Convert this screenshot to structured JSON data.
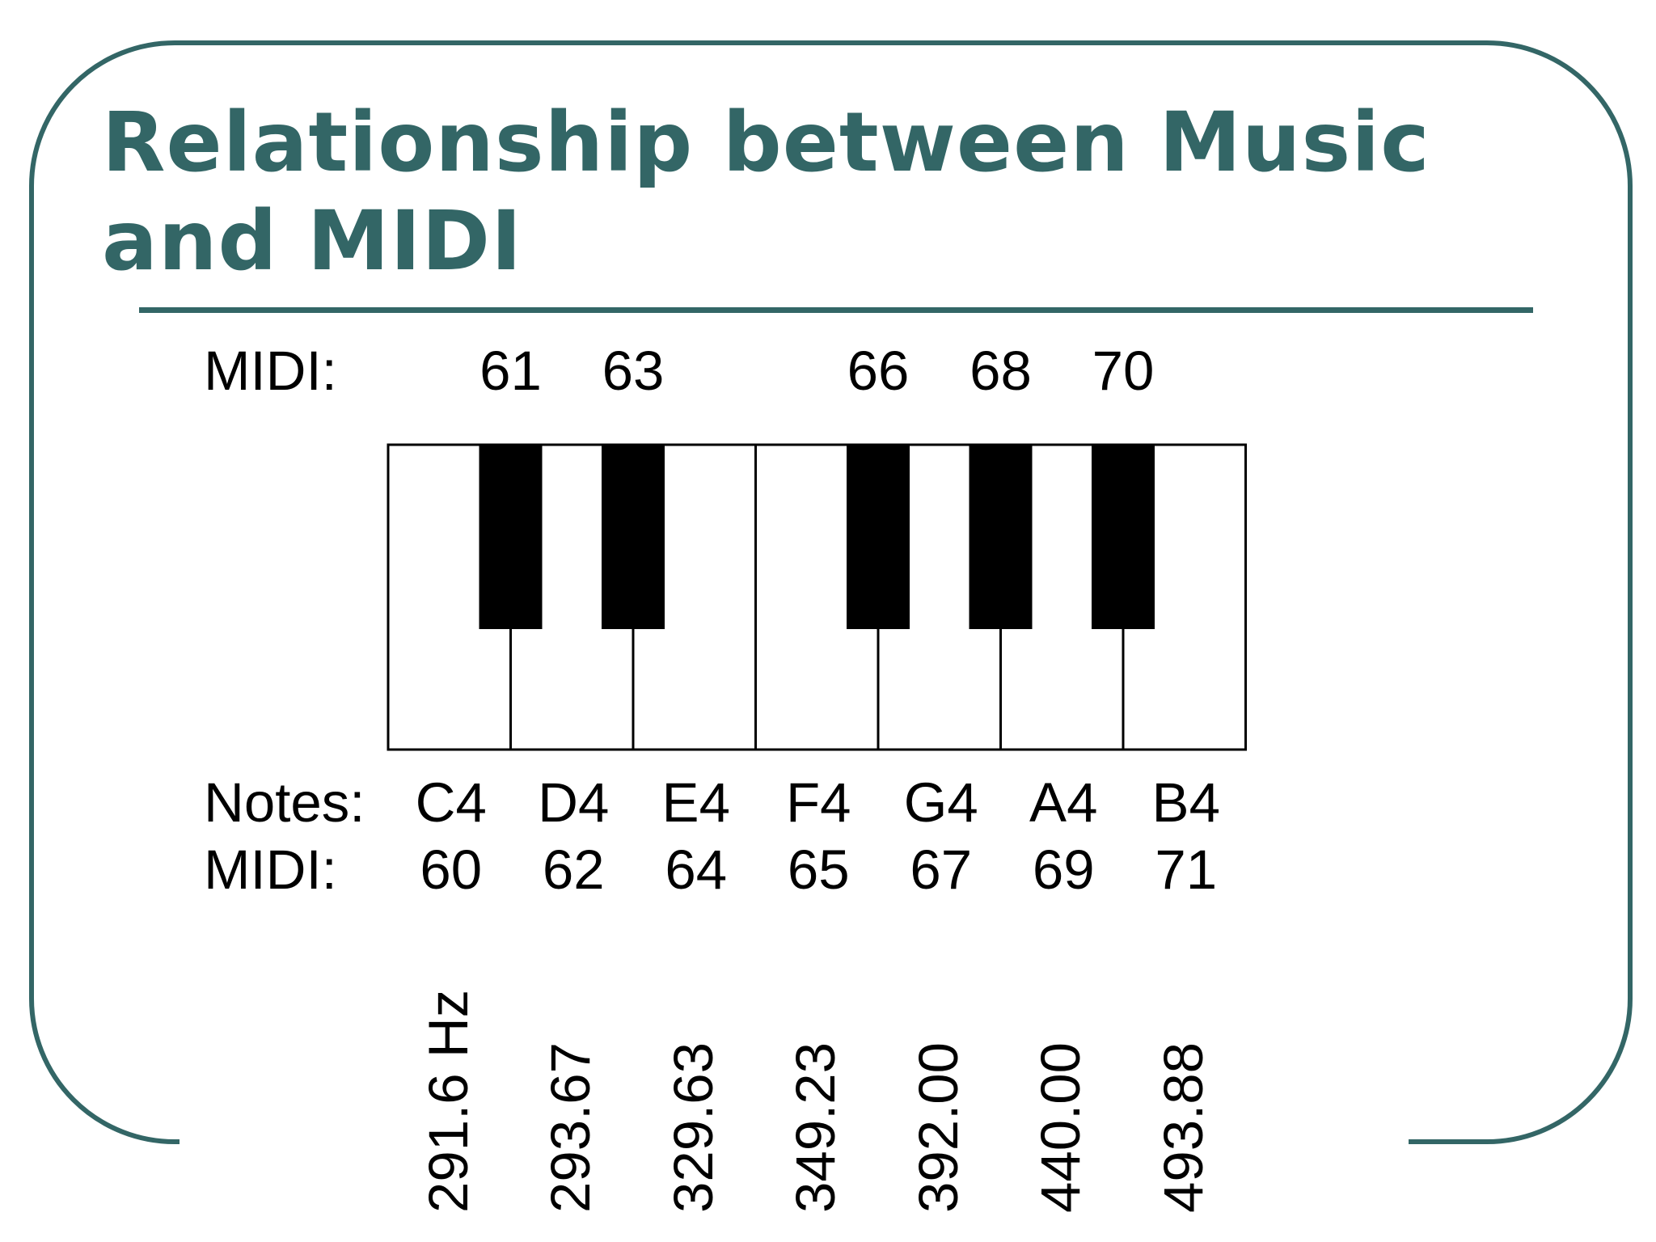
{
  "title": "Relationship between Music and MIDI",
  "title_line1": "Relationship between Music",
  "title_line2": "and MIDI",
  "black_midi_label": "MIDI:",
  "black_keys": [
    {
      "midi": "61"
    },
    {
      "midi": "63"
    },
    {
      "midi": "66"
    },
    {
      "midi": "68"
    },
    {
      "midi": "70"
    }
  ],
  "notes_label": "Notes:",
  "white_midi_label": "MIDI:",
  "white_keys": [
    {
      "note": "C4",
      "midi": "60",
      "freq": "291.6 Hz"
    },
    {
      "note": "D4",
      "midi": "62",
      "freq": "293.67"
    },
    {
      "note": "E4",
      "midi": "64",
      "freq": "329.63"
    },
    {
      "note": "F4",
      "midi": "65",
      "freq": "349.23"
    },
    {
      "note": "G4",
      "midi": "67",
      "freq": "392.00"
    },
    {
      "note": "A4",
      "midi": "69",
      "freq": "440.00"
    },
    {
      "note": "B4",
      "midi": "71",
      "freq": "493.88"
    }
  ],
  "colors": {
    "accent": "#336666",
    "key_black": "#000000",
    "key_white": "#ffffff"
  }
}
